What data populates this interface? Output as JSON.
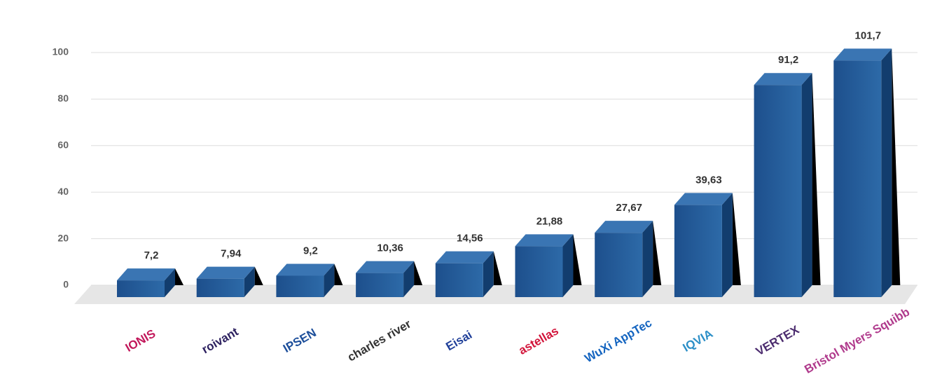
{
  "chart_data": {
    "type": "bar3d",
    "categories": [
      "IONIS",
      "roivant",
      "IPSEN",
      "charles river",
      "Eisai",
      "astellas",
      "WuXi AppTec",
      "IQVIA",
      "VERTEX",
      "Bristol Myers Squibb"
    ],
    "category_colors": [
      "#c2185b",
      "#2d2160",
      "#1c4e9a",
      "#333333",
      "#1f3f99",
      "#d2143a",
      "#1565c0",
      "#2c8fc7",
      "#4b2b6e",
      "#b03a8c"
    ],
    "values": [
      7.2,
      7.94,
      9.2,
      10.36,
      14.56,
      21.88,
      27.67,
      39.63,
      91.2,
      101.7
    ],
    "value_labels": [
      "7,2",
      "7,94",
      "9,2",
      "10,36",
      "14,56",
      "21,88",
      "27,67",
      "39,63",
      "91,2",
      "101,7"
    ],
    "color": "#215a9a",
    "ylim": [
      0,
      100
    ],
    "yticks": [
      0,
      20,
      40,
      60,
      80,
      100
    ],
    "grid": true
  }
}
